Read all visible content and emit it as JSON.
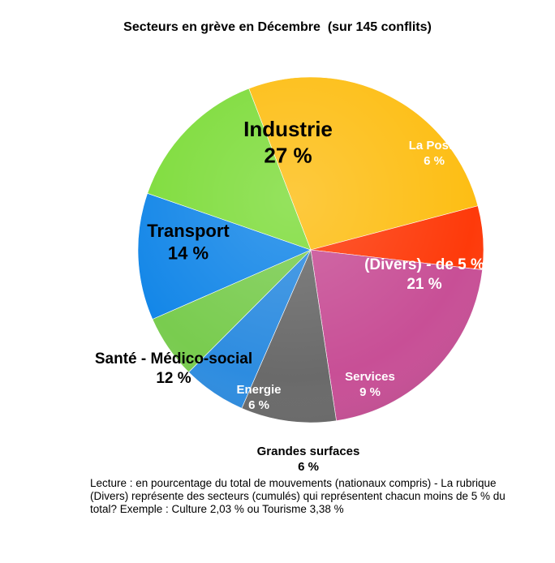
{
  "chart_data": {
    "type": "pie",
    "title": "Secteurs en grève en Décembre  (sur 145 conflits)",
    "slices": [
      {
        "label": "Industrie",
        "value_label": "27 %",
        "value": 27,
        "color": "#FDBE14",
        "label_color": "#000000"
      },
      {
        "label": "La Poste",
        "value_label": "6 %",
        "value": 6,
        "color": "#FE3A0A",
        "label_color": "#ffffff"
      },
      {
        "label": "(Divers) - de 5 %",
        "value_label": "21 %",
        "value": 21,
        "color": "#C84F96",
        "label_color": "#ffffff"
      },
      {
        "label": "Services",
        "value_label": "9 %",
        "value": 9,
        "color": "#6A6A6A",
        "label_color": "#ffffff"
      },
      {
        "label": "Grandes surfaces",
        "value_label": "6 %",
        "value": 6,
        "color": "#2D8CE0",
        "label_color": "#000000"
      },
      {
        "label": "Energie",
        "value_label": "6 %",
        "value": 6,
        "color": "#79CC4F",
        "label_color": "#ffffff"
      },
      {
        "label": "Santé - Médico-social",
        "value_label": "12 %",
        "value": 12,
        "color": "#1487E8",
        "label_color": "#000000"
      },
      {
        "label": "Transport",
        "value_label": "14 %",
        "value": 14,
        "color": "#7EDC3B",
        "label_color": "#000000"
      }
    ]
  },
  "caption": "Lecture : en pourcentage du total de mouvements (nationaux compris) - La rubrique (Divers) représente des secteurs (cumulés) qui représentent chacun moins de 5 % du total? Exemple : Culture 2,03 % ou Tourisme 3,38 %"
}
